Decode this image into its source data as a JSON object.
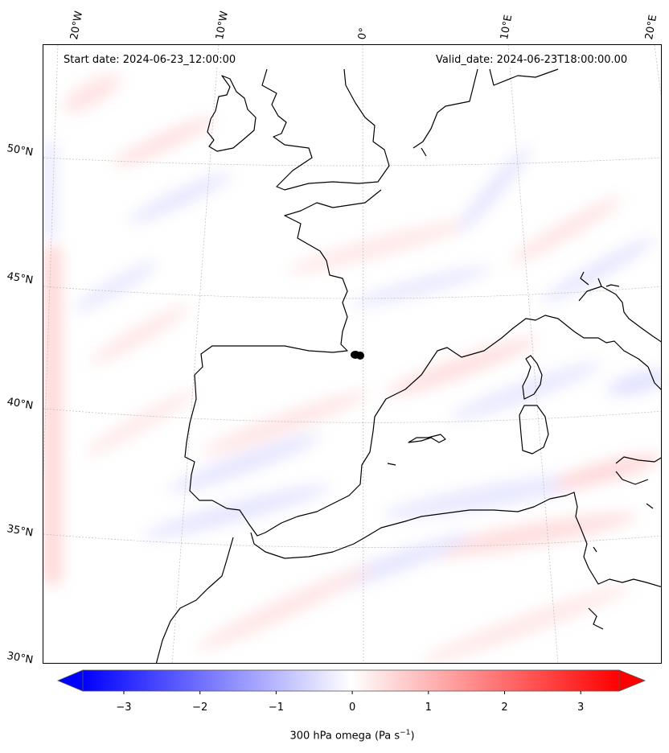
{
  "header": {
    "start_date": "Start date: 2024-06-23_12:00:00",
    "valid_date": "Valid_date: 2024-06-23T18:00:00.00"
  },
  "map": {
    "region": "Western Europe / Iberian Peninsula / Western Mediterranean",
    "field": "300 hPa vertical velocity (omega)",
    "lon_labels": [
      "20°W",
      "10°W",
      "0°",
      "10°E",
      "20°E"
    ],
    "lat_labels": [
      "50°N",
      "45°N",
      "40°N",
      "35°N",
      "30°N"
    ],
    "marker": "black dot near the western Pyrenees",
    "coastline_color": "#000000",
    "gridline_color": "#bbbbbb"
  },
  "colorbar": {
    "ticks": [
      "−3",
      "−2",
      "−1",
      "0",
      "1",
      "2",
      "3"
    ],
    "label_main": "300 hPa omega (Pa s",
    "label_sup": "−1",
    "label_end": ")",
    "colormap": "bwr",
    "min_color": "#0000ff",
    "mid_color": "#ffffff",
    "max_color": "#ff0000",
    "extend": "both"
  }
}
